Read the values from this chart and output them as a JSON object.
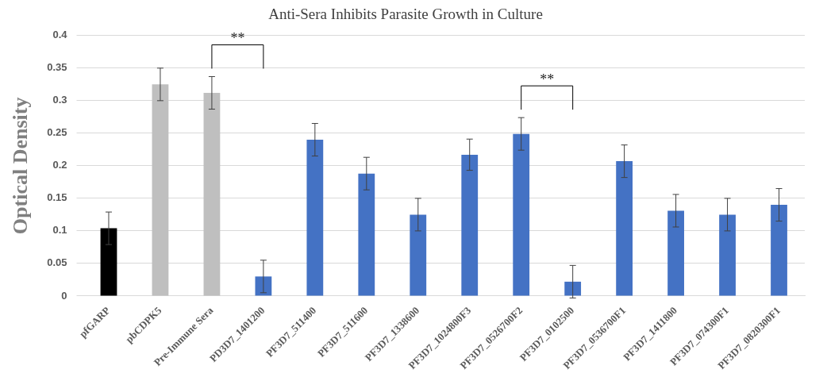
{
  "chart_data": {
    "type": "bar",
    "title": "Anti-Sera Inhibits Parasite Growth in Culture",
    "ylabel": "Optical Density",
    "categories": [
      "pfGARP",
      "pbCDPK5",
      "Pre-Immune Sera",
      "PD3D7_1401200",
      "PF3D7_511400",
      "PF3D7_511600",
      "PF3D7_1338600",
      "PF3D7_1024800F3",
      "PF3D7_0526700F2",
      "PF3D7_0102500",
      "PF3D7_0536700F1",
      "PF3D7_1411800",
      "PF3D7_074300F1",
      "PF3D7_0820300F1"
    ],
    "values": [
      0.104,
      0.325,
      0.312,
      0.03,
      0.24,
      0.188,
      0.125,
      0.217,
      0.249,
      0.022,
      0.207,
      0.131,
      0.125,
      0.14
    ],
    "errors": [
      0.025,
      0.025,
      0.025,
      0.025,
      0.025,
      0.025,
      0.025,
      0.024,
      0.025,
      0.025,
      0.025,
      0.025,
      0.025,
      0.025
    ],
    "colors": [
      "#000000",
      "#bfbfbf",
      "#bfbfbf",
      "#4472c4",
      "#4472c4",
      "#4472c4",
      "#4472c4",
      "#4472c4",
      "#4472c4",
      "#4472c4",
      "#4472c4",
      "#4472c4",
      "#4472c4",
      "#4472c4"
    ],
    "ylim": [
      0,
      0.4
    ],
    "yticks": [
      0,
      0.05,
      0.1,
      0.15,
      0.2,
      0.25,
      0.3,
      0.35,
      0.4
    ],
    "grid": "y",
    "legend": false,
    "annotations": [
      "**",
      "**"
    ]
  }
}
